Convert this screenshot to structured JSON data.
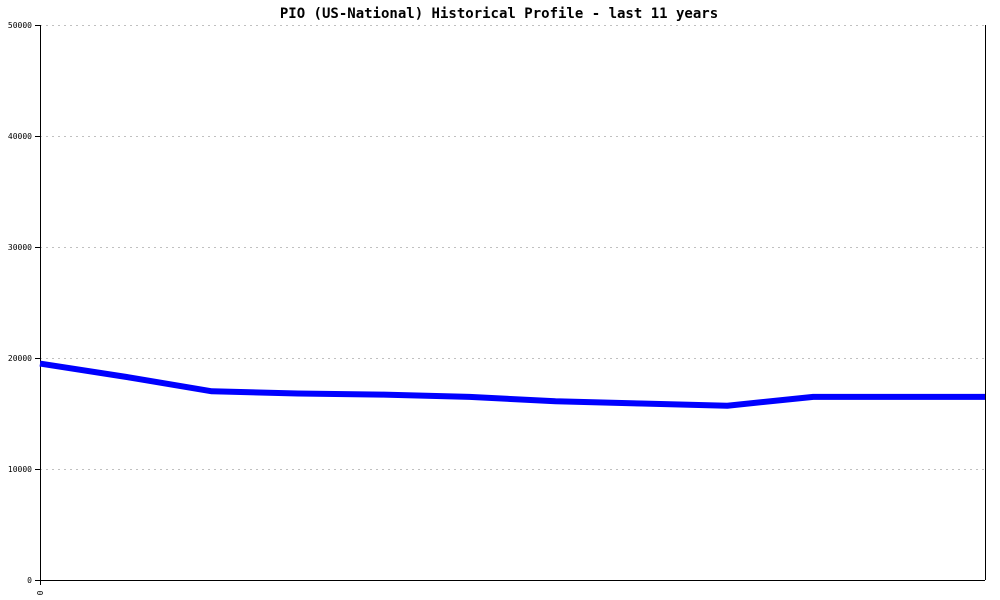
{
  "chart_data": {
    "type": "line",
    "title": "PIO (US-National) Historical Profile - last 11 years",
    "xlabel": "",
    "ylabel": "",
    "x_tick_labels": [
      "0"
    ],
    "y_ticks": [
      0,
      10000,
      20000,
      30000,
      40000,
      50000
    ],
    "ylim": [
      0,
      50000
    ],
    "grid": "horizontal dotted",
    "series": [
      {
        "color": "#0000ff",
        "values": [
          19500,
          18300,
          17000,
          16800,
          16700,
          16500,
          16100,
          15900,
          15700,
          16500,
          16500,
          16500
        ]
      }
    ]
  }
}
